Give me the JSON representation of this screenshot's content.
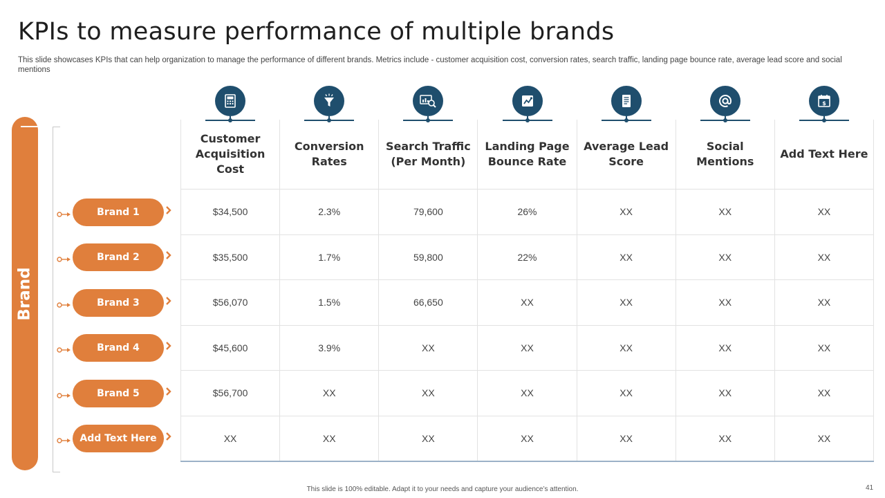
{
  "slide": {
    "title": "KPIs to measure performance of multiple brands",
    "subtitle": "This slide showcases KPIs that can help organization to manage the performance of different brands. Metrics include - customer acquisition cost, conversion rates, search traffic, landing page bounce rate, average lead score and social mentions",
    "side_label": "Brand",
    "footer": "This slide is 100% editable.  Adapt it to your needs and capture your audience’s attention.",
    "page_number": "41"
  },
  "colors": {
    "accent": "#e07f3c",
    "icon": "#1f4e6d",
    "grid": "#e2e2e2",
    "bottom_rule": "#9bb1c7"
  },
  "columns": [
    {
      "label": "Customer Acquisition Cost",
      "icon": "calculator-icon"
    },
    {
      "label": "Conversion Rates",
      "icon": "funnel-icon"
    },
    {
      "label": "Search Traffic (Per Month)",
      "icon": "search-analytics-icon"
    },
    {
      "label": "Landing Page Bounce Rate",
      "icon": "bounce-chart-icon"
    },
    {
      "label": "Average Lead Score",
      "icon": "document-list-icon"
    },
    {
      "label": "Social Mentions",
      "icon": "at-sign-icon"
    },
    {
      "label": "Add Text Here",
      "icon": "calendar-dollar-icon"
    }
  ],
  "rows": [
    {
      "brand": "Brand 1",
      "values": [
        "$34,500",
        "2.3%",
        "79,600",
        "26%",
        "XX",
        "XX",
        "XX"
      ]
    },
    {
      "brand": "Brand 2",
      "values": [
        "$35,500",
        "1.7%",
        "59,800",
        "22%",
        "XX",
        "XX",
        "XX"
      ]
    },
    {
      "brand": "Brand 3",
      "values": [
        "$56,070",
        "1.5%",
        "66,650",
        "XX",
        "XX",
        "XX",
        "XX"
      ]
    },
    {
      "brand": "Brand 4",
      "values": [
        "$45,600",
        "3.9%",
        "XX",
        "XX",
        "XX",
        "XX",
        "XX"
      ]
    },
    {
      "brand": "Brand 5",
      "values": [
        "$56,700",
        "XX",
        "XX",
        "XX",
        "XX",
        "XX",
        "XX"
      ]
    },
    {
      "brand": "Add Text Here",
      "values": [
        "XX",
        "XX",
        "XX",
        "XX",
        "XX",
        "XX",
        "XX"
      ]
    }
  ]
}
